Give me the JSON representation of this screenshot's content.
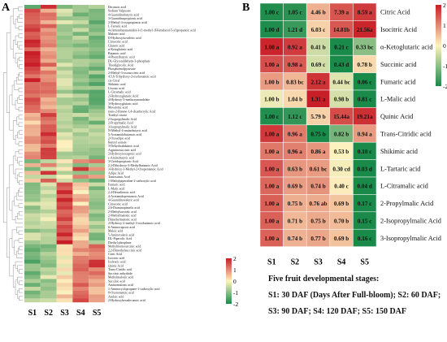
{
  "panel_a": {
    "letter": "A",
    "stages": [
      "S1",
      "S2",
      "S3",
      "S4",
      "S5"
    ],
    "scale_ticks": [
      2,
      1,
      0,
      -1,
      -2
    ],
    "metabolites": [
      "Decanoic acid",
      "Sodium Valproate",
      "4-Guanidinobutyric acid",
      "3-Guanidinopropionic acid",
      "2-Methyl-3-oxopropanoic acid",
      "L-Tartaric acid",
      "4-(Aminobutanamido)-3-(1-methyl-1H-imidazol-5-yl)propanoic acid",
      "Malonic acid",
      "D-Hydroxyisovaleric acid",
      "Citraconic acid",
      "Glutaric acid",
      "α-Ketoglutaric acid",
      "Butanoic acid",
      "4-Phenylbutyric acid",
      "DL-Glyceraldehyde-3-phosphate",
      "Thiodiglycolic Acid",
      "Phosphoenolpyruvate",
      "2-Methyl-3-oxosuccinic acid",
      "4,5,6-Trihydroxy-2-oxohexanoic acid",
      "cis-Citral",
      "Shikimic acid",
      "Ursonic acid",
      "L-Citramalic acid",
      "2-Hydroxyglutaric Acid",
      "4-Hydroxy-3-methoxymandelate",
      "3-Hydroxyglutaric acid",
      "Mevalonic acid",
      "trans-2-Butene-1,4-dicarboxylic Acid",
      "Triethyl citrate",
      "2-Isopropylmalic Acid",
      "2-Propylmalic Acid",
      "3-Isopropylmalic Acid",
      "N-Methyl-4-aminobutyric acid",
      "5-Acetamidobutanoic acid",
      "2-Oxoadipic acid",
      "Benzyl acetate",
      "3-Dehydroshikimic acid",
      "Argininosuccinic acid",
      "2-Hydroxyisocaproic acid",
      "ε-Aminobutyric acid",
      "3-Ureidopropionic Acid",
      "2,3-Dihydroxy-3-Methylbutanoic Acid",
      "3-Hydroxy-3-Methyl-2-Oxopentanoic Acid",
      "Adipic Acid",
      "Tranexamic Acid",
      "1-Methylpiperidine-2-carboxylic acid",
      "Fumaric acid",
      "L-Malic acid",
      "2,4-Hexadienoic acid",
      "4-Acetamidopentanoic Acid",
      "4-Guanidinovaleric acid",
      "Citraconic acid",
      "2,6-Diaminopimelic acid",
      "2-Methylsuccinic acid",
      "2-Methylmalonic acid",
      "Dimethylmalonic acid",
      "2-Hydroxy-2-methyl-3-oxobutanoic acid",
      "6-Aminocaproic acid",
      "Maleic acid",
      "5-Aminovaleric acid",
      "DL-Pipecolic Acid",
      "Diethyl phosphate",
      "Methylmonosuccinic acid",
      "2,2-Dimethylsuccinic acid",
      "Citric Acid",
      "Isocitric acid",
      "Isoleucic acid",
      "Quinic Acid",
      "Trans-Citridic acid",
      "Succinic anhydride",
      "Methylmalonic acid",
      "Succinic acid",
      "Aminomalonic acid",
      "1-Aminocyclopropane-1-carboxylic acid",
      "8-Oxononanoic acid",
      "Azelaic acid",
      "2-Hydroxyhexadecanoic acid"
    ]
  },
  "panel_b": {
    "letter": "B",
    "stages": [
      "S1",
      "S2",
      "S3",
      "S4",
      "S5"
    ],
    "scale_ticks": [
      2,
      1,
      0,
      -1,
      -2
    ],
    "rows": [
      {
        "name": "Citric Acid",
        "cells": [
          "1.00 c",
          "1.05 c",
          "4.46 b",
          "7.39 a",
          "8.59 a"
        ]
      },
      {
        "name": "Isocitric Acid",
        "cells": [
          "1.00 d",
          "1.21 d",
          "6.03 c",
          "14.81b",
          "21.56a"
        ]
      },
      {
        "name": "α-Ketoglutaric acid",
        "cells": [
          "1.00 a",
          "0.92 a",
          "0.41 b",
          "0.21 c",
          "0.33 bc"
        ]
      },
      {
        "name": "Succinic acid",
        "cells": [
          "1.00 a",
          "0.98 a",
          "0.69 c",
          "0.43 d",
          "0.78 b"
        ]
      },
      {
        "name": "Fumaric acid",
        "cells": [
          "1.00 b",
          "0.83 bc",
          "2.12 a",
          "0.44 bc",
          "0.06 c"
        ]
      },
      {
        "name": "L-Malic acid",
        "cells": [
          "1.00 b",
          "1.04 b",
          "1.31 a",
          "0.98 b",
          "0.81 c"
        ]
      },
      {
        "name": "Quinic Acid",
        "cells": [
          "1.00 c",
          "1.12 c",
          "5.79 b",
          "15.44a",
          "19.21a"
        ]
      },
      {
        "name": "Trans-Citridic acid",
        "cells": [
          "1.00 a",
          "0.96 a",
          "0.75 b",
          "0.82 b",
          "0.94 a"
        ]
      },
      {
        "name": "Shikimic acid",
        "cells": [
          "1.00 a",
          "0.96 a",
          "0.86 a",
          "0.53 b",
          "0.10 c"
        ]
      },
      {
        "name": "L-Tartaric acid",
        "cells": [
          "1.00 a",
          "0.63 b",
          "0.61 bc",
          "0.30 cd",
          "0.03 d"
        ]
      },
      {
        "name": "L-Citramalic acid",
        "cells": [
          "1.00 a",
          "0.69 b",
          "0.74 b",
          "0.40 c",
          "0.04 d"
        ]
      },
      {
        "name": "2-Propylmalic Acid",
        "cells": [
          "1.00 a",
          "0.75 b",
          "0.76 ab",
          "0.69 b",
          "0.17 c"
        ]
      },
      {
        "name": "2-Isopropylmalic Acid",
        "cells": [
          "1.00 a",
          "0.71 b",
          "0.75 b",
          "0.70 b",
          "0.15 c"
        ]
      },
      {
        "name": "3-Isopropylmalic Acid",
        "cells": [
          "1.00 a",
          "0.74 b",
          "0.77 b",
          "0.69 b",
          "0.16 c"
        ]
      }
    ],
    "notes": {
      "title": "Five fruit developmental stages:",
      "line1": "S1: 30 DAF (Days After Full-bloom); S2: 60 DAF;",
      "line2": "S3: 90 DAF; S4: 120 DAF; S5: 150 DAF"
    }
  },
  "colors": {
    "high": "#c81e28",
    "mid": "#fff3c0",
    "low": "#1a8a4a"
  }
}
